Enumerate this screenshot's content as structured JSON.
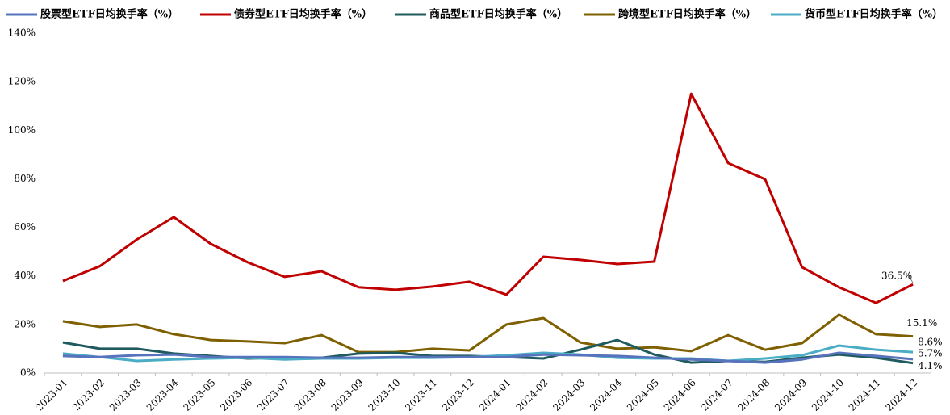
{
  "chart_data": {
    "type": "line",
    "categories": [
      "2023-01",
      "2023-02",
      "2023-03",
      "2023-04",
      "2023-05",
      "2023-06",
      "2023-07",
      "2023-08",
      "2023-09",
      "2023-10",
      "2023-11",
      "2023-12",
      "2024-01",
      "2024-02",
      "2024-03",
      "2024-04",
      "2024-05",
      "2024-06",
      "2024-07",
      "2024-08",
      "2024-09",
      "2024-10",
      "2024-11",
      "2024-12"
    ],
    "series": [
      {
        "name": "股票型ETF日均换手率（%）",
        "color": "#5873bd",
        "values": [
          7,
          6.6,
          7.3,
          7.6,
          6.6,
          6.6,
          6.6,
          6.3,
          6.3,
          6.6,
          6.6,
          6.6,
          6.6,
          7.6,
          7.3,
          7,
          6.3,
          5.6,
          5,
          4.3,
          5.6,
          8.3,
          7,
          5.7
        ],
        "value_labels": [
          null,
          null,
          null,
          null,
          null,
          null,
          null,
          null,
          null,
          null,
          null,
          null,
          null,
          null,
          null,
          null,
          null,
          null,
          null,
          null,
          null,
          null,
          null,
          "5.7%"
        ]
      },
      {
        "name": "债券型ETF日均换手率（%）",
        "color": "#c00000",
        "values": [
          37.9,
          44,
          55,
          64.2,
          53.2,
          45.6,
          39.6,
          41.9,
          35.3,
          34.3,
          35.6,
          37.6,
          32.3,
          47.9,
          46.6,
          44.9,
          45.9,
          115,
          86.5,
          79.8,
          43.6,
          35.3,
          28.9,
          36.5
        ],
        "value_labels": [
          null,
          null,
          null,
          null,
          null,
          null,
          null,
          null,
          null,
          null,
          null,
          null,
          null,
          null,
          null,
          null,
          null,
          null,
          null,
          null,
          null,
          null,
          null,
          "36.5%"
        ]
      },
      {
        "name": "商品型ETF日均换手率（%）",
        "color": "#1f5a5e",
        "values": [
          12.6,
          10,
          10,
          8,
          7,
          6,
          6.3,
          6.3,
          8,
          8.3,
          7,
          7,
          6.6,
          6,
          9.6,
          13.6,
          7.6,
          4.3,
          5,
          4.6,
          6.3,
          7.6,
          6.3,
          4.1
        ],
        "value_labels": [
          null,
          null,
          null,
          null,
          null,
          null,
          null,
          null,
          null,
          null,
          null,
          null,
          null,
          null,
          null,
          null,
          null,
          null,
          null,
          null,
          null,
          null,
          null,
          "4.1%"
        ]
      },
      {
        "name": "跨境型ETF日均换手率（%）",
        "color": "#7f6000",
        "values": [
          21.3,
          19,
          20,
          16,
          13.6,
          13,
          12.3,
          15.6,
          8.6,
          8.6,
          10,
          9.3,
          20,
          22.6,
          12.6,
          10,
          10.6,
          9,
          15.6,
          9.6,
          12.3,
          24,
          16,
          15.1
        ],
        "value_labels": [
          null,
          null,
          null,
          null,
          null,
          null,
          null,
          null,
          null,
          null,
          null,
          null,
          null,
          null,
          null,
          null,
          null,
          null,
          null,
          null,
          null,
          null,
          null,
          "15.1%"
        ]
      },
      {
        "name": "货币型ETF日均换手率（%）",
        "color": "#4bacc6",
        "values": [
          8,
          6.6,
          5,
          5.6,
          6,
          6.3,
          5.6,
          6,
          6,
          6.3,
          6.3,
          6.6,
          7.3,
          8.3,
          7.6,
          6.3,
          6,
          6,
          5,
          6,
          7.3,
          11.3,
          9.6,
          8.6
        ],
        "value_labels": [
          null,
          null,
          null,
          null,
          null,
          null,
          null,
          null,
          null,
          null,
          null,
          null,
          null,
          null,
          null,
          null,
          null,
          null,
          null,
          null,
          null,
          null,
          null,
          "8.6%"
        ]
      }
    ],
    "ylim": [
      0,
      140
    ],
    "yticks": [
      {
        "value": 0,
        "label": "0%"
      },
      {
        "value": 20,
        "label": "20%"
      },
      {
        "value": 40,
        "label": "40%"
      },
      {
        "value": 60,
        "label": "60%"
      },
      {
        "value": 80,
        "label": "80%"
      },
      {
        "value": 100,
        "label": "100%"
      },
      {
        "value": 120,
        "label": "120%"
      },
      {
        "value": 140,
        "label": "140%"
      }
    ],
    "legend": "top",
    "grid": false
  }
}
